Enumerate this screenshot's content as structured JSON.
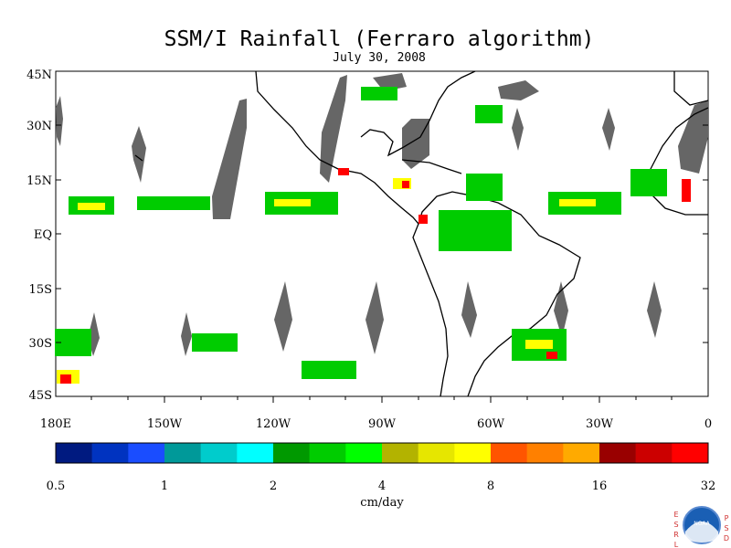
{
  "title": "SSM/I Rainfall (Ferraro algorithm)",
  "date": "July 30, 2008",
  "lat_labels": [
    "45N",
    "30N",
    "15N",
    "EQ",
    "15S",
    "30S",
    "45S"
  ],
  "lon_labels": [
    "180E",
    "150W",
    "120W",
    "90W",
    "60W",
    "30W",
    "0"
  ],
  "colorbar": {
    "colors": [
      "#001a80",
      "#0033c0",
      "#1a4dff",
      "#009999",
      "#00cccc",
      "#00ffff",
      "#009900",
      "#00cc00",
      "#00ff00",
      "#b3b300",
      "#e6e600",
      "#ffff00",
      "#ff5500",
      "#ff8000",
      "#ffaa00",
      "#990000",
      "#cc0000",
      "#ff0000"
    ],
    "tick_labels": [
      "0.5",
      "1",
      "2",
      "4",
      "8",
      "16",
      "32"
    ],
    "unit": "cm/day"
  },
  "logo": {
    "left_letters": [
      "E",
      "S",
      "R",
      "L"
    ],
    "right_letters": [
      "P",
      "S",
      "D"
    ],
    "center": "NOAA"
  },
  "colors": {
    "coverage_gap": "#666666",
    "coastline": "#000000"
  }
}
